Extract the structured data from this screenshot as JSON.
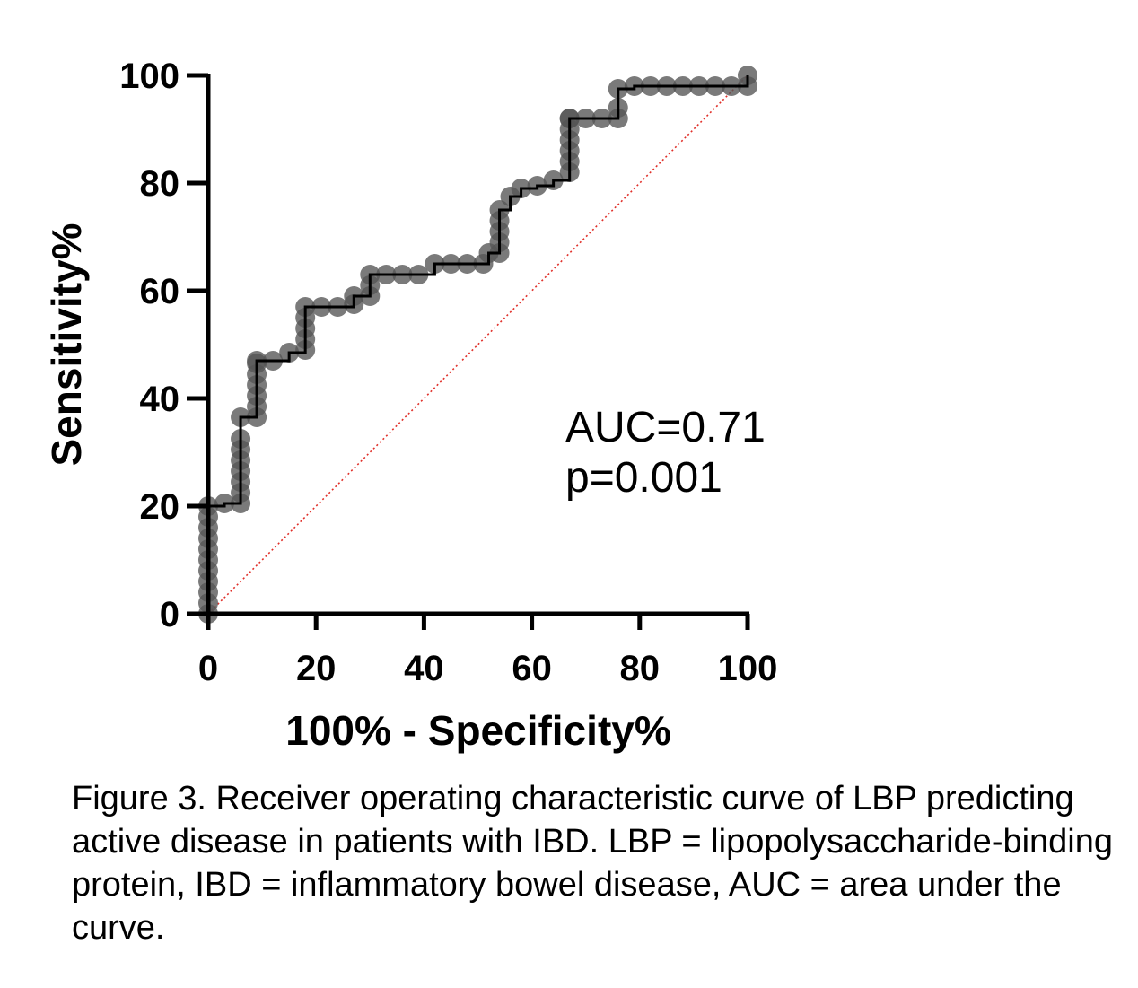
{
  "chart_data": {
    "type": "line",
    "xlabel": "100% - Specificity%",
    "ylabel": "Sensitivity%",
    "xlim": [
      0,
      100
    ],
    "ylim": [
      0,
      100
    ],
    "xticks": [
      "0",
      "20",
      "40",
      "60",
      "80",
      "100"
    ],
    "yticks": [
      "0",
      "20",
      "40",
      "60",
      "80",
      "100"
    ],
    "grid": false,
    "legend": "none",
    "annotations": [
      "AUC=0.71",
      "p=0.001"
    ],
    "reference_line": {
      "x": [
        0,
        100
      ],
      "y": [
        0,
        100
      ],
      "style": "dotted",
      "color": "#e0302a"
    },
    "series": [
      {
        "color": "#000000",
        "marker_color": "#555555",
        "x": [
          0,
          0,
          0,
          0,
          0,
          0,
          0,
          0,
          0,
          0,
          0,
          3,
          6,
          6,
          6,
          6,
          6,
          6,
          6,
          6,
          9,
          9,
          9,
          9,
          9,
          9,
          9,
          12,
          15,
          18,
          18,
          18,
          18,
          18,
          21,
          24,
          27,
          27,
          30,
          30,
          30,
          33,
          36,
          39,
          42,
          45,
          48,
          51,
          52,
          54,
          54,
          54,
          54,
          54,
          56,
          58,
          61,
          64,
          67,
          67,
          67,
          67,
          67,
          67,
          67,
          70,
          73,
          76,
          76,
          76,
          79,
          82,
          85,
          88,
          91,
          94,
          97,
          100,
          100
        ],
        "y": [
          0,
          2,
          4,
          6,
          8,
          10,
          12,
          14,
          16,
          18,
          20,
          20.5,
          20.5,
          22.5,
          24.5,
          26.5,
          28.5,
          30.5,
          32.5,
          36.5,
          36.5,
          38.5,
          40.5,
          42.5,
          44.5,
          46.5,
          47,
          47,
          48.5,
          49,
          51,
          53,
          55,
          57,
          57,
          57,
          57.5,
          59,
          59,
          61,
          63,
          63,
          63,
          63,
          65,
          65,
          65,
          65,
          67,
          67,
          69,
          71,
          73,
          75,
          77.5,
          79,
          79.5,
          80.5,
          82,
          84,
          86,
          88,
          90,
          92,
          92,
          92,
          92,
          92,
          94,
          97.5,
          98,
          98,
          98,
          98,
          98,
          98,
          98,
          98,
          100
        ]
      }
    ]
  },
  "caption": "Figure 3. Receiver operating characteristic curve of LBP predicting active disease in patients with IBD. LBP = lipopolysaccharide-binding protein, IBD = inflammatory bowel disease, AUC = area under the curve."
}
